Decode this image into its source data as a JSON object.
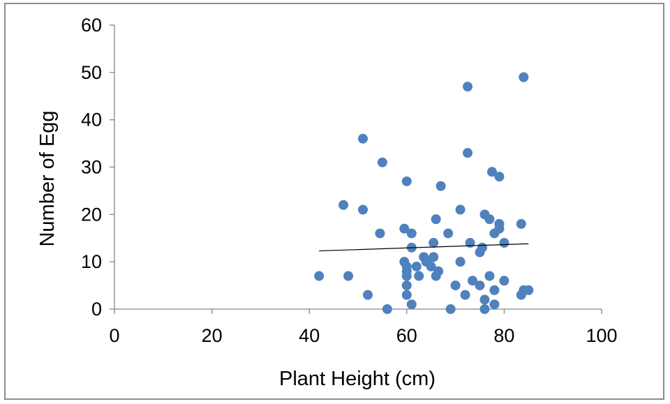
{
  "chart_data": {
    "type": "scatter",
    "title": "",
    "xlabel": "Plant Height (cm)",
    "ylabel": "Number of Egg",
    "xlim": [
      0,
      100
    ],
    "ylim": [
      0,
      60
    ],
    "x_ticks": [
      0,
      20,
      40,
      60,
      80,
      100
    ],
    "y_ticks": [
      0,
      10,
      20,
      30,
      40,
      50,
      60
    ],
    "grid": false,
    "legend": "none",
    "marker_color": "#4f81bd",
    "trendline": {
      "type": "linear",
      "x": [
        42,
        85
      ],
      "y": [
        12.3,
        13.8
      ],
      "color": "#000000"
    },
    "series": [
      {
        "points": [
          [
            42,
            7
          ],
          [
            47,
            22
          ],
          [
            48,
            7
          ],
          [
            51,
            36
          ],
          [
            51,
            21
          ],
          [
            52,
            3
          ],
          [
            54.5,
            16
          ],
          [
            55,
            31
          ],
          [
            56,
            0
          ],
          [
            59.5,
            10
          ],
          [
            59.5,
            17
          ],
          [
            60,
            27
          ],
          [
            60,
            9
          ],
          [
            60,
            8
          ],
          [
            60,
            7
          ],
          [
            60,
            5
          ],
          [
            60,
            3
          ],
          [
            61,
            16
          ],
          [
            61,
            13
          ],
          [
            61,
            1
          ],
          [
            62,
            9
          ],
          [
            62.5,
            7
          ],
          [
            63.5,
            11
          ],
          [
            64,
            10
          ],
          [
            65,
            9
          ],
          [
            65.5,
            11
          ],
          [
            65.5,
            14
          ],
          [
            66,
            19
          ],
          [
            66,
            7
          ],
          [
            66.5,
            8
          ],
          [
            67,
            26
          ],
          [
            68.5,
            16
          ],
          [
            69,
            0
          ],
          [
            70,
            5
          ],
          [
            71,
            21
          ],
          [
            71,
            10
          ],
          [
            72,
            3
          ],
          [
            72.5,
            47
          ],
          [
            72.5,
            33
          ],
          [
            73,
            14
          ],
          [
            73.5,
            6
          ],
          [
            75,
            12
          ],
          [
            75,
            5
          ],
          [
            75.5,
            13
          ],
          [
            76,
            20
          ],
          [
            76,
            2
          ],
          [
            76,
            0
          ],
          [
            77,
            19
          ],
          [
            77,
            7
          ],
          [
            77.5,
            29
          ],
          [
            78,
            16
          ],
          [
            78,
            4
          ],
          [
            78,
            1
          ],
          [
            79,
            28
          ],
          [
            79,
            18
          ],
          [
            79,
            17
          ],
          [
            80,
            14
          ],
          [
            80,
            6
          ],
          [
            83.5,
            18
          ],
          [
            83.5,
            3
          ],
          [
            84,
            4
          ],
          [
            84,
            49
          ],
          [
            85,
            4
          ]
        ]
      }
    ]
  }
}
